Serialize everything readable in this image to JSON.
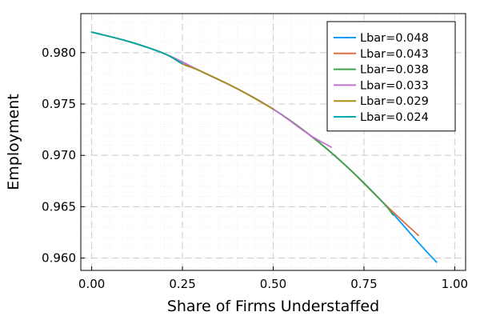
{
  "chart_data": {
    "type": "line",
    "title": "",
    "xlabel": "Share of Firms Understaffed",
    "ylabel": "Employment",
    "xlim": [
      -0.03,
      1.03
    ],
    "ylim": [
      0.9588,
      0.9838
    ],
    "xticks": [
      0.0,
      0.25,
      0.5,
      0.75,
      1.0
    ],
    "xtick_labels": [
      "0.00",
      "0.25",
      "0.50",
      "0.75",
      "1.00"
    ],
    "yticks": [
      0.96,
      0.965,
      0.97,
      0.975,
      0.98
    ],
    "ytick_labels": [
      "0.960",
      "0.965",
      "0.970",
      "0.975",
      "0.980"
    ],
    "grid": true,
    "grid_style": "dashed major, faint dotted minor",
    "legend_position": "top-right",
    "series": [
      {
        "name": "Lbar=0.048",
        "color": "#009AFA",
        "x": [
          0.0,
          0.1,
          0.2,
          0.3,
          0.4,
          0.5,
          0.6,
          0.7,
          0.8,
          0.9,
          0.95
        ],
        "y": [
          0.982,
          0.9811,
          0.9799,
          0.9782,
          0.9765,
          0.9745,
          0.972,
          0.969,
          0.9655,
          0.9615,
          0.9596
        ]
      },
      {
        "name": "Lbar=0.043",
        "color": "#E36F47",
        "x": [
          0.0,
          0.1,
          0.2,
          0.3,
          0.4,
          0.5,
          0.6,
          0.7,
          0.8,
          0.9
        ],
        "y": [
          0.982,
          0.9811,
          0.9799,
          0.9782,
          0.9765,
          0.9745,
          0.972,
          0.969,
          0.9655,
          0.9622
        ]
      },
      {
        "name": "Lbar=0.038",
        "color": "#3EA44E",
        "x": [
          0.0,
          0.1,
          0.2,
          0.3,
          0.4,
          0.5,
          0.6,
          0.7,
          0.8,
          0.83
        ],
        "y": [
          0.982,
          0.9811,
          0.9799,
          0.9782,
          0.9765,
          0.9745,
          0.972,
          0.969,
          0.9655,
          0.9642
        ]
      },
      {
        "name": "Lbar=0.033",
        "color": "#C271D2",
        "x": [
          0.0,
          0.1,
          0.2,
          0.3,
          0.4,
          0.5,
          0.6,
          0.66
        ],
        "y": [
          0.982,
          0.9811,
          0.9799,
          0.9782,
          0.9765,
          0.9745,
          0.972,
          0.9708
        ]
      },
      {
        "name": "Lbar=0.029",
        "color": "#AC8D18",
        "x": [
          0.0,
          0.1,
          0.2,
          0.25,
          0.3,
          0.4,
          0.5
        ],
        "y": [
          0.982,
          0.9811,
          0.9799,
          0.9789,
          0.9782,
          0.9765,
          0.9745
        ]
      },
      {
        "name": "Lbar=0.024",
        "color": "#00A9AD",
        "x": [
          0.0,
          0.1,
          0.2,
          0.25
        ],
        "y": [
          0.982,
          0.9811,
          0.9799,
          0.9789
        ]
      }
    ]
  }
}
